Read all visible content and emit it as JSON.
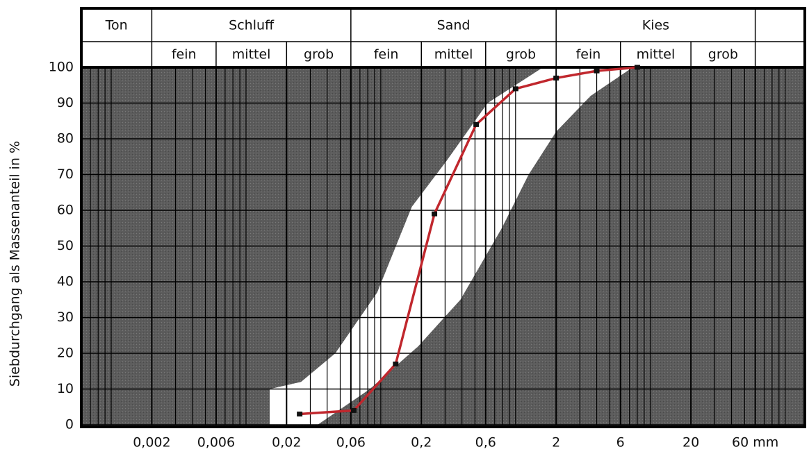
{
  "chart_data": {
    "type": "line",
    "y_label": "Siebdurchgang als Massenanteil in %",
    "header": {
      "groups": [
        {
          "label": "Ton"
        },
        {
          "label": "Schluff",
          "subs": [
            "fein",
            "mittel",
            "grob"
          ]
        },
        {
          "label": "Sand",
          "subs": [
            "fein",
            "mittel",
            "grob"
          ]
        },
        {
          "label": "Kies",
          "subs": [
            "fein",
            "mittel",
            "grob"
          ]
        }
      ]
    },
    "x_log": true,
    "xlim": [
      0.0006,
      140
    ],
    "xticks": [
      {
        "value": 0.002,
        "label": "0,002"
      },
      {
        "value": 0.006,
        "label": "0,006"
      },
      {
        "value": 0.02,
        "label": "0,02"
      },
      {
        "value": 0.06,
        "label": "0,06"
      },
      {
        "value": 0.2,
        "label": "0,2"
      },
      {
        "value": 0.6,
        "label": "0,6"
      },
      2,
      6,
      20,
      {
        "value": 60,
        "label": "60 mm"
      }
    ],
    "ylim": [
      0,
      100
    ],
    "yticks": [
      0,
      10,
      20,
      30,
      40,
      50,
      60,
      70,
      80,
      90,
      100
    ],
    "grid": true,
    "minor_grid": true,
    "envelope": {
      "left": {
        "x": [
          0.015,
          0.015,
          0.0256,
          0.046,
          0.094,
          0.17,
          0.31,
          0.62,
          1.6
        ],
        "values": [
          0,
          10,
          12,
          20,
          37,
          61,
          74,
          90,
          100
        ]
      },
      "right": {
        "x": [
          0.034,
          0.083,
          0.19,
          0.39,
          0.79,
          1.25,
          2.0,
          3.6,
          7.4
        ],
        "values": [
          0,
          10,
          22,
          35,
          55,
          70,
          82,
          92,
          100
        ]
      }
    },
    "series": [
      {
        "color": "#c0272d",
        "x": [
          0.025,
          0.063,
          0.129,
          0.25,
          0.51,
          1.0,
          2.0,
          4.0,
          8.0
        ],
        "values": [
          3,
          4,
          17,
          59,
          84,
          94,
          97,
          99,
          100
        ]
      }
    ]
  }
}
